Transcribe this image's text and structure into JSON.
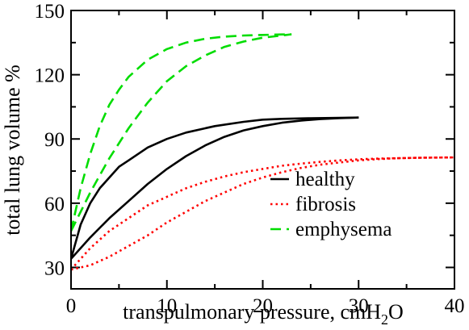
{
  "chart_data": {
    "type": "line",
    "title": "",
    "xlabel": "transpulmonary pressure, cmH",
    "xlabel_subscript": "2",
    "xlabel_suffix": "O",
    "ylabel": "total lung volume %",
    "xlim": [
      0,
      40
    ],
    "ylim": [
      20,
      150
    ],
    "xticks": [
      0,
      10,
      20,
      30,
      40
    ],
    "yticks": [
      30,
      60,
      90,
      120,
      150
    ],
    "grid": false,
    "legend_position": "bottom-right",
    "series": [
      {
        "name": "healthy",
        "color": "#000000",
        "style": "solid",
        "upper": {
          "x": [
            0,
            1,
            2,
            3,
            4,
            5,
            6,
            8,
            10,
            12,
            15,
            18,
            20,
            22,
            25,
            28,
            30
          ],
          "y": [
            34,
            50,
            60,
            67,
            72,
            77,
            80,
            86,
            90,
            93,
            96,
            98,
            99,
            99.4,
            99.7,
            99.9,
            100
          ]
        },
        "lower": {
          "x": [
            0,
            2,
            4,
            6,
            8,
            10,
            12,
            14,
            16,
            18,
            20,
            22,
            24,
            26,
            28,
            30
          ],
          "y": [
            34,
            44,
            53,
            61,
            69,
            76,
            82,
            87,
            91,
            94,
            96,
            97.6,
            98.6,
            99.3,
            99.7,
            100
          ]
        }
      },
      {
        "name": "fibrosis",
        "color": "#ff0000",
        "style": "dotted",
        "upper": {
          "x": [
            0,
            2,
            4,
            6,
            8,
            10,
            12,
            14,
            16,
            18,
            20,
            22,
            24,
            26,
            28,
            30,
            32,
            34,
            36,
            38,
            40
          ],
          "y": [
            29,
            39,
            47,
            53,
            59,
            63,
            67,
            70,
            72.5,
            74.5,
            76,
            77.5,
            78.5,
            79.3,
            80,
            80.5,
            80.8,
            81,
            81.2,
            81.3,
            81.4
          ]
        },
        "lower": {
          "x": [
            0,
            2,
            4,
            6,
            8,
            10,
            12,
            14,
            16,
            18,
            20,
            22,
            24,
            26,
            28,
            30,
            32,
            34,
            36,
            38,
            40
          ],
          "y": [
            29,
            31,
            35,
            40,
            45,
            51,
            56,
            61,
            65,
            69,
            72,
            74.5,
            76.5,
            78,
            79,
            80,
            80.6,
            81,
            81.2,
            81.3,
            81.4
          ]
        }
      },
      {
        "name": "emphysema",
        "color": "#00dd00",
        "style": "dashed",
        "upper": {
          "x": [
            0,
            1,
            2,
            3,
            4,
            5,
            6,
            7,
            8,
            10,
            12,
            14,
            16,
            18,
            20,
            22,
            23
          ],
          "y": [
            47,
            67,
            83,
            96,
            106,
            113,
            119,
            123,
            127,
            132,
            135,
            136.8,
            137.8,
            138.3,
            138.6,
            138.8,
            138.9
          ]
        },
        "lower": {
          "x": [
            0,
            1,
            2,
            3,
            4,
            5,
            6,
            7,
            8,
            10,
            12,
            14,
            16,
            18,
            20,
            22,
            23
          ],
          "y": [
            47,
            56,
            65,
            73,
            81,
            88,
            95,
            101,
            107,
            117,
            124,
            129,
            133,
            135.5,
            137.3,
            138.3,
            138.9
          ]
        }
      }
    ]
  }
}
